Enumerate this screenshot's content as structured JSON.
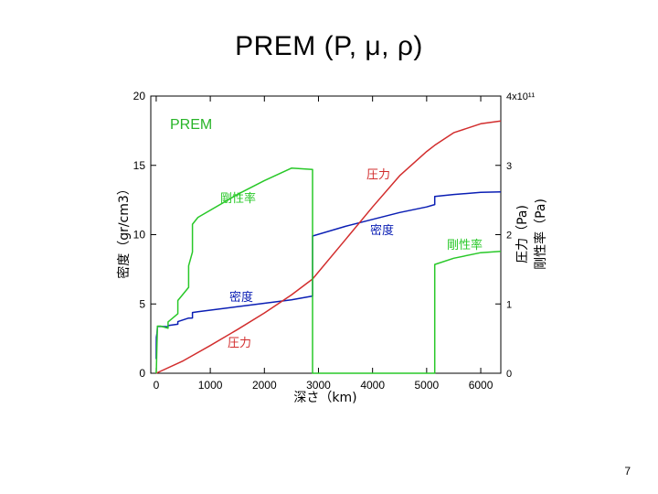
{
  "slide": {
    "title": "PREM (P, μ, ρ)",
    "page_number": "7"
  },
  "chart_data": {
    "type": "line",
    "title": "PREM",
    "xlabel": "深さ（km)",
    "ylabel_left": "密度（gr/cm3）",
    "ylabel_right": [
      "圧力（Pa)",
      "剛性率（Pa)"
    ],
    "xlim": [
      -100,
      6371
    ],
    "ylim_left": [
      0,
      20
    ],
    "ylim_right": [
      0,
      400000000000.0
    ],
    "x_ticks": [
      "0",
      "1000",
      "2000",
      "3000",
      "4000",
      "5000",
      "6000"
    ],
    "y_ticks_left": [
      "0",
      "5",
      "10",
      "15",
      "20"
    ],
    "y_ticks_right": [
      "0",
      "1",
      "2",
      "3",
      "4x10¹¹"
    ],
    "grid": false,
    "colors": {
      "density": "#0a1eb4",
      "pressure": "#d22d2d",
      "rigidity": "#28c828",
      "title": "#28b428"
    },
    "annotations": [
      {
        "text": "剛性率",
        "series": "rigidity"
      },
      {
        "text": "圧力",
        "series": "pressure"
      },
      {
        "text": "密度",
        "series": "density"
      },
      {
        "text": "剛性率",
        "series": "rigidity"
      },
      {
        "text": "密度",
        "series": "density"
      },
      {
        "text": "圧力",
        "series": "pressure"
      }
    ],
    "series": [
      {
        "key": "density",
        "axis": "left",
        "x": [
          0,
          3,
          15,
          24,
          80,
          220,
          220,
          400,
          400,
          600,
          670,
          670,
          771,
          1500,
          2000,
          2500,
          2891,
          2891,
          3500,
          4000,
          4500,
          5000,
          5150,
          5150,
          5500,
          6000,
          6371
        ],
        "y": [
          1.02,
          2.6,
          2.9,
          3.38,
          3.37,
          3.36,
          3.44,
          3.54,
          3.72,
          3.98,
          3.99,
          4.38,
          4.44,
          4.8,
          5.05,
          5.3,
          5.57,
          9.9,
          10.6,
          11.1,
          11.6,
          12.0,
          12.17,
          12.76,
          12.9,
          13.05,
          13.09
        ]
      },
      {
        "key": "pressure",
        "axis": "right",
        "x": [
          0,
          500,
          1000,
          1500,
          2000,
          2500,
          2891,
          3500,
          4000,
          4500,
          5000,
          5150,
          5500,
          6000,
          6371
        ],
        "y": [
          0,
          18000000000.0,
          40000000000.0,
          63000000000.0,
          87000000000.0,
          113000000000.0,
          136000000000.0,
          193000000000.0,
          240000000000.0,
          285000000000.0,
          320000000000.0,
          329000000000.0,
          347000000000.0,
          360000000000.0,
          364000000000.0
        ]
      },
      {
        "key": "rigidity",
        "axis": "right",
        "x": [
          0,
          3,
          15,
          24,
          80,
          220,
          220,
          400,
          400,
          600,
          600,
          670,
          670,
          771,
          1500,
          2000,
          2500,
          2891,
          2891,
          5150,
          5150,
          5500,
          6000,
          6371
        ],
        "y": [
          0,
          4400000000.0,
          44000000000.0,
          68000000000.0,
          68000000000.0,
          65000000000.0,
          74000000000.0,
          86000000000.0,
          105000000000.0,
          124000000000.0,
          155000000000.0,
          175000000000.0,
          215000000000.0,
          225000000000.0,
          258000000000.0,
          278000000000.0,
          296000000000.0,
          294000000000.0,
          0,
          0,
          157000000000.0,
          166000000000.0,
          174000000000.0,
          176000000000.0
        ]
      }
    ]
  }
}
